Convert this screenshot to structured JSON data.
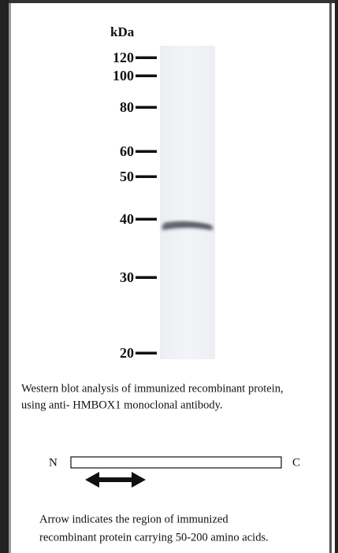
{
  "figure": {
    "unit_label": "kDa",
    "markers": [
      "120",
      "100",
      "80",
      "60",
      "50",
      "40",
      "30",
      "20"
    ],
    "caption_lines": [
      "Western blot analysis of immunized recombinant protein,",
      "using anti- HMBOX1 monoclonal antibody."
    ],
    "protein": {
      "n_label": "N",
      "c_label": "C"
    },
    "note_lines": [
      "Arrow indicates the region of immunized",
      "recombinant protein carrying 50-200 amino acids."
    ]
  }
}
